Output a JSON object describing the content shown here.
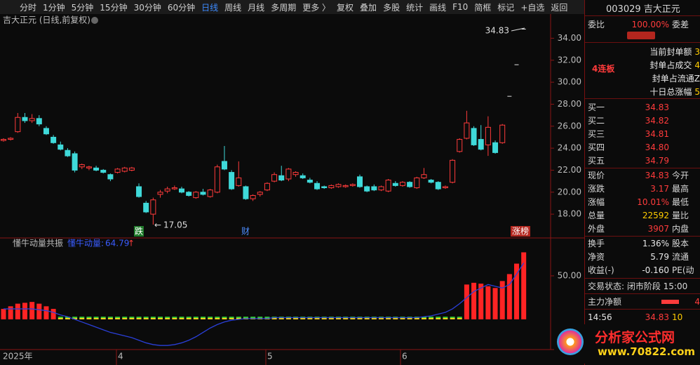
{
  "toolbar": {
    "items": [
      "分时",
      "1分钟",
      "5分钟",
      "15分钟",
      "30分钟",
      "60分钟",
      "日线",
      "周线",
      "月线",
      "多周期",
      "更多 〉",
      "复权",
      "叠加",
      "多股",
      "统计",
      "画线",
      "F10",
      "简框",
      "标记",
      "+自选",
      "返回"
    ]
  },
  "chart": {
    "title": "吉大正元 (日线,前复权)",
    "ylim": [
      15.9,
      36.2
    ],
    "yticks": [
      {
        "value": 18,
        "label": "18.00"
      },
      {
        "value": 20,
        "label": "20.00"
      },
      {
        "value": 22,
        "label": "22.00"
      },
      {
        "value": 24,
        "label": "24.00"
      },
      {
        "value": 26,
        "label": "26.00"
      },
      {
        "value": 28,
        "label": "28.00"
      },
      {
        "value": 30,
        "label": "30.00"
      },
      {
        "value": 32,
        "label": "32.00"
      },
      {
        "value": 34,
        "label": "34.00"
      }
    ],
    "candles": [
      [
        24.7,
        24.9,
        24.6,
        24.8
      ],
      [
        24.8,
        25.0,
        24.7,
        24.9
      ],
      [
        25.5,
        27.2,
        25.4,
        26.8
      ],
      [
        26.8,
        27.2,
        26.3,
        26.5
      ],
      [
        26.5,
        27.1,
        26.3,
        26.7
      ],
      [
        26.7,
        27.0,
        26.0,
        26.2
      ],
      [
        25.8,
        26.0,
        25.2,
        25.3
      ],
      [
        25.0,
        25.2,
        24.4,
        24.5
      ],
      [
        24.3,
        24.6,
        23.8,
        23.9
      ],
      [
        23.8,
        24.0,
        23.2,
        23.3
      ],
      [
        23.5,
        23.7,
        21.8,
        22.0
      ],
      [
        22.3,
        22.6,
        22.1,
        22.5
      ],
      [
        22.2,
        22.4,
        22.0,
        22.3
      ],
      [
        22.2,
        22.4,
        21.9,
        22.0
      ],
      [
        22.0,
        22.1,
        21.7,
        21.8
      ],
      [
        21.6,
        21.7,
        21.0,
        21.2
      ],
      [
        21.8,
        22.2,
        21.7,
        22.1
      ],
      [
        21.9,
        22.3,
        21.8,
        22.2
      ],
      [
        22.0,
        22.3,
        21.9,
        22.2
      ],
      [
        20.5,
        20.8,
        19.5,
        19.6
      ],
      [
        19.0,
        19.2,
        18.1,
        18.2
      ],
      [
        18.0,
        19.5,
        17.05,
        19.3
      ],
      [
        19.8,
        20.2,
        19.5,
        20.0
      ],
      [
        20.1,
        20.5,
        19.9,
        20.3
      ],
      [
        20.3,
        20.6,
        20.2,
        20.4
      ],
      [
        20.3,
        20.5,
        19.9,
        20.0
      ],
      [
        20.0,
        20.1,
        19.6,
        19.7
      ],
      [
        19.5,
        20.1,
        19.4,
        20.0
      ],
      [
        20.0,
        20.3,
        19.7,
        19.8
      ],
      [
        19.6,
        20.3,
        19.5,
        20.2
      ],
      [
        20.0,
        22.5,
        19.9,
        22.3
      ],
      [
        22.8,
        24.2,
        22.0,
        22.1
      ],
      [
        21.8,
        22.0,
        20.2,
        20.3
      ],
      [
        20.6,
        22.8,
        20.5,
        21.3
      ],
      [
        20.5,
        20.6,
        19.3,
        19.4
      ],
      [
        19.4,
        19.8,
        19.2,
        19.7
      ],
      [
        19.8,
        20.1,
        19.6,
        20.0
      ],
      [
        20.2,
        20.9,
        20.1,
        20.8
      ],
      [
        21.0,
        21.8,
        20.9,
        21.6
      ],
      [
        21.5,
        22.4,
        21.0,
        21.1
      ],
      [
        21.2,
        22.2,
        21.0,
        22.1
      ],
      [
        21.6,
        21.9,
        21.4,
        21.8
      ],
      [
        21.5,
        21.7,
        21.2,
        21.3
      ],
      [
        21.1,
        21.3,
        20.8,
        20.9
      ],
      [
        20.8,
        21.0,
        20.2,
        20.3
      ],
      [
        20.5,
        20.6,
        20.3,
        20.4
      ],
      [
        20.4,
        20.7,
        20.3,
        20.6
      ],
      [
        20.5,
        20.8,
        20.4,
        20.7
      ],
      [
        20.5,
        20.7,
        20.4,
        20.6
      ],
      [
        20.6,
        20.8,
        20.5,
        20.7
      ],
      [
        21.4,
        21.6,
        20.4,
        20.5
      ],
      [
        20.5,
        20.6,
        20.0,
        20.1
      ],
      [
        20.5,
        20.7,
        20.1,
        20.2
      ],
      [
        20.2,
        20.6,
        20.1,
        20.5
      ],
      [
        20.1,
        21.2,
        20.0,
        21.1
      ],
      [
        20.8,
        21.0,
        20.5,
        20.6
      ],
      [
        20.6,
        21.0,
        20.5,
        20.9
      ],
      [
        20.9,
        21.0,
        20.4,
        20.5
      ],
      [
        20.4,
        21.4,
        20.3,
        21.3
      ],
      [
        21.3,
        22.2,
        21.2,
        21.6
      ],
      [
        21.1,
        21.2,
        20.8,
        20.9
      ],
      [
        20.9,
        21.0,
        20.2,
        20.3
      ],
      [
        20.4,
        20.6,
        20.3,
        20.5
      ],
      [
        20.9,
        23.0,
        20.8,
        22.9
      ],
      [
        23.7,
        24.9,
        23.6,
        24.8
      ],
      [
        24.9,
        27.4,
        24.8,
        26.3
      ],
      [
        25.8,
        26.0,
        24.2,
        24.3
      ],
      [
        24.8,
        26.1,
        23.8,
        23.9
      ],
      [
        24.3,
        26.9,
        23.3,
        25.9
      ],
      [
        24.5,
        24.7,
        23.5,
        23.6
      ],
      [
        24.5,
        26.2,
        24.4,
        26.1
      ],
      [
        28.72
      ],
      [
        31.59
      ],
      [
        34.83
      ]
    ],
    "high_label": 34.83,
    "low_label": 17.05,
    "events": [
      "跌",
      "财",
      "涨榜"
    ],
    "x_labels": [
      "2025年",
      "4",
      "5",
      "6"
    ]
  },
  "indicator": {
    "name": "懂牛动量共振",
    "line_name": "懂牛动量:",
    "ylim": [
      -33.9,
      92.7
    ],
    "yticks": [
      {
        "value": 50,
        "label": "50.00"
      }
    ],
    "bars": [
      12,
      15,
      18,
      19,
      20,
      18,
      15,
      12,
      3,
      3,
      3,
      3,
      3,
      3,
      3,
      3,
      3,
      3,
      3,
      3,
      3,
      3,
      3,
      3,
      3,
      3,
      3,
      3,
      3,
      3,
      3,
      3,
      3,
      3,
      3,
      3,
      3,
      3,
      3,
      3,
      3,
      3,
      3,
      3,
      3,
      3,
      3,
      3,
      3,
      3,
      3,
      3,
      3,
      3,
      3,
      3,
      3,
      3,
      3,
      3,
      3,
      3,
      3,
      3,
      3,
      40,
      42,
      41,
      38,
      36,
      44,
      52,
      64,
      77
    ],
    "line": [
      12,
      12,
      12,
      12,
      12,
      11,
      10,
      8,
      5,
      3,
      0,
      -3,
      -6,
      -9,
      -12,
      -15,
      -17,
      -19,
      -21,
      -24,
      -27,
      -29,
      -30,
      -30,
      -29,
      -27,
      -24,
      -20,
      -15,
      -10,
      -6,
      -3,
      -1,
      0,
      1,
      1,
      1,
      1,
      2,
      2,
      2,
      2,
      2,
      2,
      2,
      2,
      2,
      2,
      2,
      2,
      2,
      2,
      2,
      2,
      2,
      2,
      2,
      2,
      2,
      3,
      4,
      6,
      8,
      12,
      18,
      25,
      32,
      36,
      40,
      38,
      36,
      40,
      52,
      64.79
    ]
  },
  "quote": {
    "header": "003029 吉大正元",
    "weibi": [
      "委比",
      "100.00%",
      "委差"
    ],
    "board": "4连板",
    "seal": [
      [
        "当前封单额",
        "3"
      ],
      [
        "封单占成交",
        "4"
      ],
      [
        "封单占流通Z"
      ],
      [
        "十日总涨幅",
        "5"
      ]
    ],
    "bids": [
      [
        "买一",
        "34.83"
      ],
      [
        "买二",
        "34.82"
      ],
      [
        "买三",
        "34.81"
      ],
      [
        "买四",
        "34.80"
      ],
      [
        "买五",
        "34.79"
      ]
    ],
    "stats": [
      [
        "现价",
        "34.83",
        "今开"
      ],
      [
        "涨跌",
        "3.17",
        "最高"
      ],
      [
        "涨幅",
        "10.01%",
        "最低"
      ],
      [
        "总量",
        "22592",
        "量比"
      ],
      [
        "外盘",
        "3907",
        "内盘"
      ]
    ],
    "stats2": [
      [
        "换手",
        "1.36%",
        "股本"
      ],
      [
        "净资",
        "5.79",
        "流通"
      ],
      [
        "收益(-)",
        "-0.160",
        "PE(动"
      ]
    ],
    "status": "交易状态: 闭市阶段 15:00",
    "net": [
      "主力净额",
      "4"
    ],
    "tick": [
      "14:56",
      "34.83",
      "10"
    ]
  },
  "watermark": {
    "name": "分析家公式网",
    "url": "www.70822.com"
  }
}
